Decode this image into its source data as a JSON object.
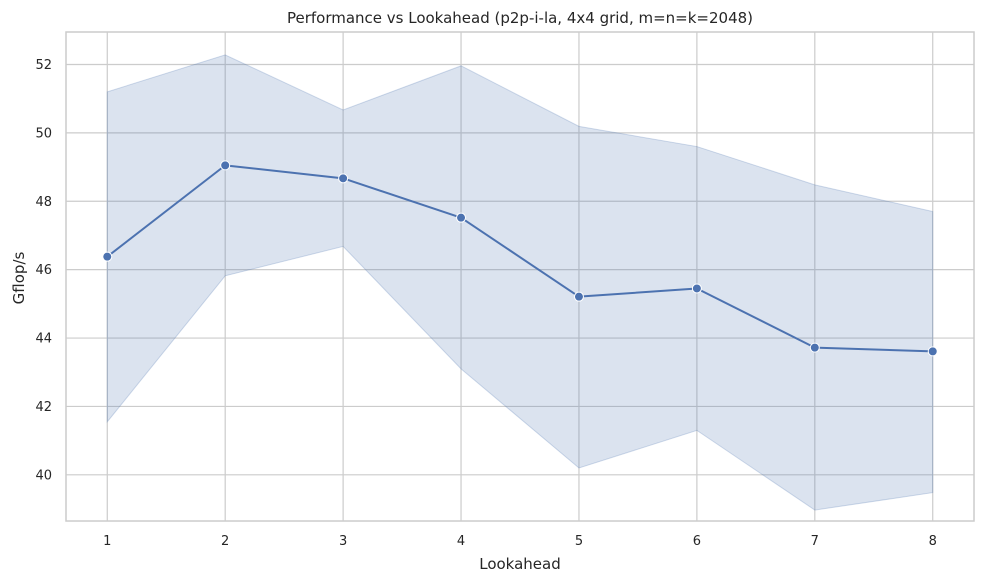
{
  "chart_data": {
    "type": "line",
    "title": "Performance vs Lookahead (p2p-i-la, 4x4 grid, m=n=k=2048)",
    "xlabel": "Lookahead",
    "ylabel": "Gflop/s",
    "x": [
      1,
      2,
      3,
      4,
      5,
      6,
      7,
      8
    ],
    "series": [
      {
        "values": [
          46.38,
          49.05,
          48.67,
          47.52,
          45.21,
          45.45,
          43.72,
          43.61
        ],
        "ci_lower": [
          41.55,
          45.82,
          46.68,
          43.1,
          40.2,
          41.3,
          38.97,
          39.48
        ],
        "ci_upper": [
          51.2,
          52.28,
          50.67,
          51.96,
          50.19,
          49.6,
          48.48,
          47.7
        ]
      }
    ],
    "xlim": [
      0.65,
      8.35
    ],
    "ylim": [
      38.65,
      52.95
    ],
    "xticks": [
      "1",
      "2",
      "3",
      "4",
      "5",
      "6",
      "7",
      "8"
    ],
    "yticks": [
      "40",
      "42",
      "44",
      "46",
      "48",
      "50",
      "52"
    ],
    "grid": true,
    "colors": {
      "line": "#4c72b0",
      "band": "#4c72b0",
      "grid": "#cccccc"
    }
  }
}
